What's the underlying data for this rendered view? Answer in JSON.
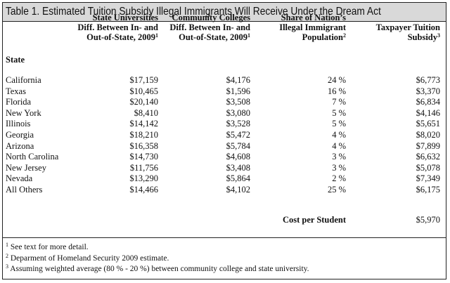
{
  "title": "Table 1. Estimated Tuition Subsidy Illegal Immigrants Will Receive Under the Dream Act",
  "headers": {
    "state": "State",
    "uni_l1": "State Universities",
    "uni_l2": "Diff. Between In- and",
    "uni_l3": "Out-of-State, 2009",
    "uni_sup": "1",
    "cc_l1": "Community Colleges",
    "cc_l2": "Diff. Between In- and",
    "cc_l3": "Out-of-State, 2009",
    "cc_sup": "1",
    "share_l1": "Share of Nation’s",
    "share_l2": "Illegal Immigrant",
    "share_l3": "Population",
    "share_sup": "2",
    "sub_l1": "Taxpayer Tuition",
    "sub_l2": "Subsidy",
    "sub_sup": "3"
  },
  "rows": [
    {
      "state": "California",
      "uni": "$17,159",
      "cc": "$4,176",
      "share": "24 %",
      "subsidy": "$6,773"
    },
    {
      "state": "Texas",
      "uni": "$10,465",
      "cc": "$1,596",
      "share": "16 %",
      "subsidy": "$3,370"
    },
    {
      "state": "Florida",
      "uni": "$20,140",
      "cc": "$3,508",
      "share": "7 %",
      "subsidy": "$6,834"
    },
    {
      "state": "New York",
      "uni": "$8,410",
      "cc": "$3,080",
      "share": "5 %",
      "subsidy": "$4,146"
    },
    {
      "state": "Illinois",
      "uni": "$14,142",
      "cc": "$3,528",
      "share": "5 %",
      "subsidy": "$5,651"
    },
    {
      "state": "Georgia",
      "uni": "$18,210",
      "cc": "$5,472",
      "share": "4 %",
      "subsidy": "$8,020"
    },
    {
      "state": "Arizona",
      "uni": "$16,358",
      "cc": "$5,784",
      "share": "4 %",
      "subsidy": "$7,899"
    },
    {
      "state": "North Carolina",
      "uni": "$14,730",
      "cc": "$4,608",
      "share": "3 %",
      "subsidy": "$6,632"
    },
    {
      "state": "New Jersey",
      "uni": "$11,756",
      "cc": "$3,408",
      "share": "3 %",
      "subsidy": "$5,078"
    },
    {
      "state": "Nevada",
      "uni": "$13,290",
      "cc": "$5,864",
      "share": "2 %",
      "subsidy": "$7,349"
    },
    {
      "state": "All Others",
      "uni": "$14,466",
      "cc": "$4,102",
      "share": "25 %",
      "subsidy": "$6,175"
    }
  ],
  "cost": {
    "label": "Cost per Student",
    "value": "$5,970"
  },
  "notes": [
    {
      "sup": "1",
      "text": "See text for more detail."
    },
    {
      "sup": "2",
      "text": "Deparment of Homeland Security 2009 estimate."
    },
    {
      "sup": "3",
      "text": "Assuming weighted average (80 % - 20 %) between community college and state university."
    }
  ]
}
